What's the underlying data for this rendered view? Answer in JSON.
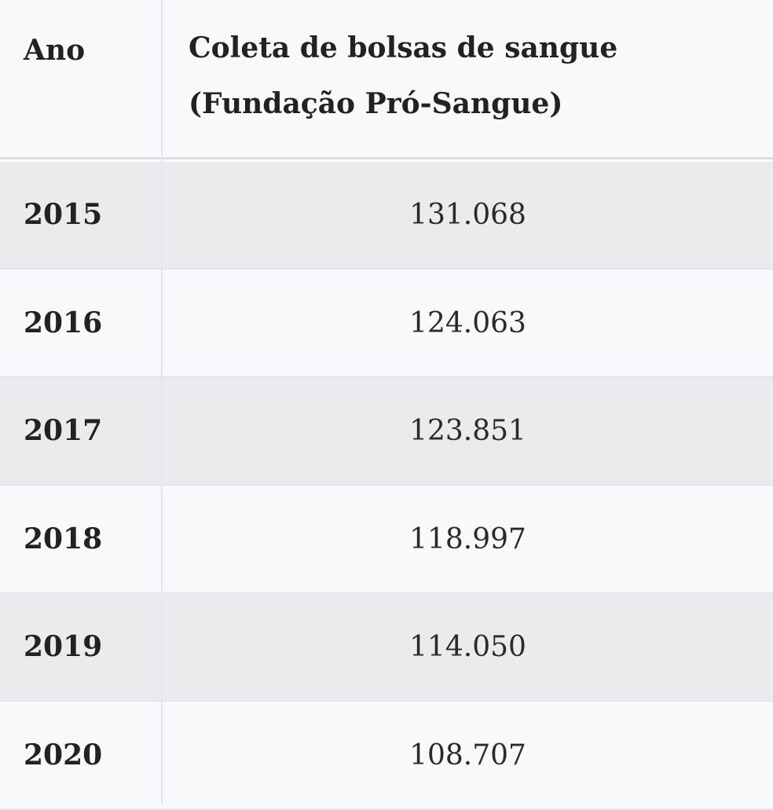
{
  "chart_data": {
    "type": "table",
    "columns": [
      "Ano",
      "Coleta de bolsas de sangue",
      "(Fundação Pró-Sangue)"
    ],
    "rows": [
      {
        "year": "2015",
        "value": "131.068"
      },
      {
        "year": "2016",
        "value": "124.063"
      },
      {
        "year": "2017",
        "value": "123.851"
      },
      {
        "year": "2018",
        "value": "118.997"
      },
      {
        "year": "2019",
        "value": "114.050"
      },
      {
        "year": "2020",
        "value": "108.707"
      }
    ]
  },
  "colors": {
    "header_bg": "#f8f9fa",
    "shaded_row": "#eaebed",
    "plain_row": "#f8f9fa",
    "text": "#222222",
    "border": "#e3e5e8"
  }
}
